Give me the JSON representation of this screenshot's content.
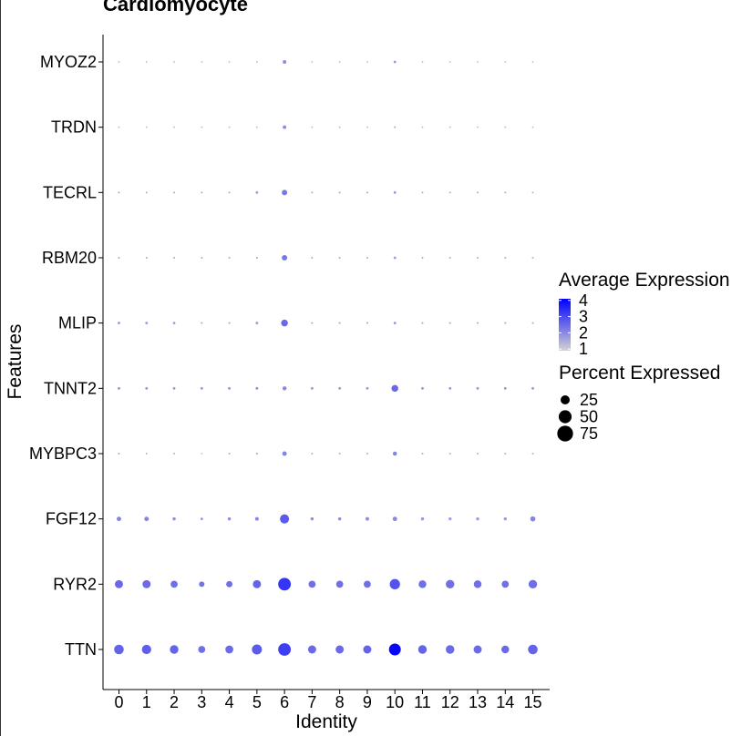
{
  "chart_data": {
    "type": "scatter",
    "subtype": "dot-plot",
    "title": "Cardiomyocyte",
    "xlabel": "Identity",
    "ylabel": "Features",
    "x_categories": [
      "0",
      "1",
      "2",
      "3",
      "4",
      "5",
      "6",
      "7",
      "8",
      "9",
      "10",
      "11",
      "12",
      "13",
      "14",
      "15"
    ],
    "y_categories": [
      "TTN",
      "RYR2",
      "FGF12",
      "MYBPC3",
      "TNNT2",
      "MLIP",
      "RBM20",
      "TECRL",
      "TRDN",
      "MYOZ2"
    ],
    "grid": false,
    "color_low": "#d3d3d3",
    "color_high": "#0000ff",
    "color_range": [
      0.5,
      4.5
    ],
    "size_range": [
      0,
      100
    ],
    "legend_position": "right",
    "legend": {
      "color_title": "Average Expression",
      "color_ticks": [
        {
          "value": 4,
          "label": "4"
        },
        {
          "value": 3,
          "label": "3"
        },
        {
          "value": 2,
          "label": "2"
        },
        {
          "value": 1,
          "label": "1"
        }
      ],
      "size_title": "Percent Expressed",
      "size_entries": [
        {
          "value": 25,
          "label": "25"
        },
        {
          "value": 50,
          "label": "50"
        },
        {
          "value": 75,
          "label": "75"
        }
      ]
    },
    "points": [
      {
        "gene": "TTN",
        "cluster": "0",
        "pct": 28,
        "avg": 2.6
      },
      {
        "gene": "TTN",
        "cluster": "1",
        "pct": 26,
        "avg": 2.7
      },
      {
        "gene": "TTN",
        "cluster": "2",
        "pct": 22,
        "avg": 2.6
      },
      {
        "gene": "TTN",
        "cluster": "3",
        "pct": 15,
        "avg": 2.4
      },
      {
        "gene": "TTN",
        "cluster": "4",
        "pct": 19,
        "avg": 2.5
      },
      {
        "gene": "TTN",
        "cluster": "5",
        "pct": 30,
        "avg": 2.8
      },
      {
        "gene": "TTN",
        "cluster": "6",
        "pct": 48,
        "avg": 3.3
      },
      {
        "gene": "TTN",
        "cluster": "7",
        "pct": 20,
        "avg": 2.5
      },
      {
        "gene": "TTN",
        "cluster": "8",
        "pct": 20,
        "avg": 2.5
      },
      {
        "gene": "TTN",
        "cluster": "9",
        "pct": 20,
        "avg": 2.6
      },
      {
        "gene": "TTN",
        "cluster": "10",
        "pct": 42,
        "avg": 4.4
      },
      {
        "gene": "TTN",
        "cluster": "11",
        "pct": 22,
        "avg": 2.6
      },
      {
        "gene": "TTN",
        "cluster": "12",
        "pct": 22,
        "avg": 2.5
      },
      {
        "gene": "TTN",
        "cluster": "13",
        "pct": 20,
        "avg": 2.5
      },
      {
        "gene": "TTN",
        "cluster": "14",
        "pct": 18,
        "avg": 2.5
      },
      {
        "gene": "TTN",
        "cluster": "15",
        "pct": 28,
        "avg": 2.6
      },
      {
        "gene": "RYR2",
        "cluster": "0",
        "pct": 20,
        "avg": 2.5
      },
      {
        "gene": "RYR2",
        "cluster": "1",
        "pct": 20,
        "avg": 2.5
      },
      {
        "gene": "RYR2",
        "cluster": "2",
        "pct": 15,
        "avg": 2.4
      },
      {
        "gene": "RYR2",
        "cluster": "3",
        "pct": 9,
        "avg": 2.3
      },
      {
        "gene": "RYR2",
        "cluster": "4",
        "pct": 12,
        "avg": 2.4
      },
      {
        "gene": "RYR2",
        "cluster": "5",
        "pct": 20,
        "avg": 2.6
      },
      {
        "gene": "RYR2",
        "cluster": "6",
        "pct": 48,
        "avg": 3.5
      },
      {
        "gene": "RYR2",
        "cluster": "7",
        "pct": 15,
        "avg": 2.4
      },
      {
        "gene": "RYR2",
        "cluster": "8",
        "pct": 15,
        "avg": 2.4
      },
      {
        "gene": "RYR2",
        "cluster": "9",
        "pct": 15,
        "avg": 2.4
      },
      {
        "gene": "RYR2",
        "cluster": "10",
        "pct": 32,
        "avg": 2.9
      },
      {
        "gene": "RYR2",
        "cluster": "11",
        "pct": 18,
        "avg": 2.4
      },
      {
        "gene": "RYR2",
        "cluster": "12",
        "pct": 22,
        "avg": 2.4
      },
      {
        "gene": "RYR2",
        "cluster": "13",
        "pct": 18,
        "avg": 2.4
      },
      {
        "gene": "RYR2",
        "cluster": "14",
        "pct": 15,
        "avg": 2.4
      },
      {
        "gene": "RYR2",
        "cluster": "15",
        "pct": 22,
        "avg": 2.4
      },
      {
        "gene": "FGF12",
        "cluster": "0",
        "pct": 6,
        "avg": 2.0
      },
      {
        "gene": "FGF12",
        "cluster": "1",
        "pct": 6,
        "avg": 2.0
      },
      {
        "gene": "FGF12",
        "cluster": "2",
        "pct": 3,
        "avg": 1.8
      },
      {
        "gene": "FGF12",
        "cluster": "3",
        "pct": 2,
        "avg": 1.7
      },
      {
        "gene": "FGF12",
        "cluster": "4",
        "pct": 3,
        "avg": 1.8
      },
      {
        "gene": "FGF12",
        "cluster": "5",
        "pct": 4,
        "avg": 1.9
      },
      {
        "gene": "FGF12",
        "cluster": "6",
        "pct": 25,
        "avg": 2.8
      },
      {
        "gene": "FGF12",
        "cluster": "7",
        "pct": 3,
        "avg": 1.8
      },
      {
        "gene": "FGF12",
        "cluster": "8",
        "pct": 3,
        "avg": 1.8
      },
      {
        "gene": "FGF12",
        "cluster": "9",
        "pct": 4,
        "avg": 1.8
      },
      {
        "gene": "FGF12",
        "cluster": "10",
        "pct": 6,
        "avg": 1.9
      },
      {
        "gene": "FGF12",
        "cluster": "11",
        "pct": 3,
        "avg": 1.6
      },
      {
        "gene": "FGF12",
        "cluster": "12",
        "pct": 3,
        "avg": 1.4
      },
      {
        "gene": "FGF12",
        "cluster": "13",
        "pct": 3,
        "avg": 1.5
      },
      {
        "gene": "FGF12",
        "cluster": "14",
        "pct": 3,
        "avg": 1.5
      },
      {
        "gene": "FGF12",
        "cluster": "15",
        "pct": 8,
        "avg": 2.0
      },
      {
        "gene": "MYBPC3",
        "cluster": "0",
        "pct": 1,
        "avg": 1.4
      },
      {
        "gene": "MYBPC3",
        "cluster": "1",
        "pct": 1,
        "avg": 1.2
      },
      {
        "gene": "MYBPC3",
        "cluster": "2",
        "pct": 1,
        "avg": 1.2
      },
      {
        "gene": "MYBPC3",
        "cluster": "3",
        "pct": 0.5,
        "avg": 1.0
      },
      {
        "gene": "MYBPC3",
        "cluster": "4",
        "pct": 1,
        "avg": 1.2
      },
      {
        "gene": "MYBPC3",
        "cluster": "5",
        "pct": 1,
        "avg": 1.5
      },
      {
        "gene": "MYBPC3",
        "cluster": "6",
        "pct": 6,
        "avg": 2.0
      },
      {
        "gene": "MYBPC3",
        "cluster": "7",
        "pct": 1,
        "avg": 1.2
      },
      {
        "gene": "MYBPC3",
        "cluster": "8",
        "pct": 1,
        "avg": 1.2
      },
      {
        "gene": "MYBPC3",
        "cluster": "9",
        "pct": 1,
        "avg": 1.2
      },
      {
        "gene": "MYBPC3",
        "cluster": "10",
        "pct": 5,
        "avg": 2.0
      },
      {
        "gene": "MYBPC3",
        "cluster": "11",
        "pct": 1,
        "avg": 1.2
      },
      {
        "gene": "MYBPC3",
        "cluster": "12",
        "pct": 1,
        "avg": 1.2
      },
      {
        "gene": "MYBPC3",
        "cluster": "13",
        "pct": 1,
        "avg": 1.2
      },
      {
        "gene": "MYBPC3",
        "cluster": "14",
        "pct": 1,
        "avg": 1.2
      },
      {
        "gene": "MYBPC3",
        "cluster": "15",
        "pct": 1,
        "avg": 1.1
      },
      {
        "gene": "TNNT2",
        "cluster": "0",
        "pct": 2,
        "avg": 1.7
      },
      {
        "gene": "TNNT2",
        "cluster": "1",
        "pct": 2,
        "avg": 1.7
      },
      {
        "gene": "TNNT2",
        "cluster": "2",
        "pct": 2,
        "avg": 1.6
      },
      {
        "gene": "TNNT2",
        "cluster": "3",
        "pct": 2,
        "avg": 1.6
      },
      {
        "gene": "TNNT2",
        "cluster": "4",
        "pct": 2,
        "avg": 1.7
      },
      {
        "gene": "TNNT2",
        "cluster": "5",
        "pct": 2,
        "avg": 1.8
      },
      {
        "gene": "TNNT2",
        "cluster": "6",
        "pct": 5,
        "avg": 1.9
      },
      {
        "gene": "TNNT2",
        "cluster": "7",
        "pct": 2,
        "avg": 1.6
      },
      {
        "gene": "TNNT2",
        "cluster": "8",
        "pct": 2,
        "avg": 1.6
      },
      {
        "gene": "TNNT2",
        "cluster": "9",
        "pct": 2,
        "avg": 1.6
      },
      {
        "gene": "TNNT2",
        "cluster": "10",
        "pct": 14,
        "avg": 2.5
      },
      {
        "gene": "TNNT2",
        "cluster": "11",
        "pct": 2,
        "avg": 1.6
      },
      {
        "gene": "TNNT2",
        "cluster": "12",
        "pct": 2,
        "avg": 1.6
      },
      {
        "gene": "TNNT2",
        "cluster": "13",
        "pct": 2,
        "avg": 1.6
      },
      {
        "gene": "TNNT2",
        "cluster": "14",
        "pct": 2,
        "avg": 1.6
      },
      {
        "gene": "TNNT2",
        "cluster": "15",
        "pct": 2,
        "avg": 1.6
      },
      {
        "gene": "MLIP",
        "cluster": "0",
        "pct": 2,
        "avg": 1.6
      },
      {
        "gene": "MLIP",
        "cluster": "1",
        "pct": 2,
        "avg": 1.6
      },
      {
        "gene": "MLIP",
        "cluster": "2",
        "pct": 2,
        "avg": 1.5
      },
      {
        "gene": "MLIP",
        "cluster": "3",
        "pct": 1,
        "avg": 1.3
      },
      {
        "gene": "MLIP",
        "cluster": "4",
        "pct": 1,
        "avg": 1.4
      },
      {
        "gene": "MLIP",
        "cluster": "5",
        "pct": 2,
        "avg": 1.6
      },
      {
        "gene": "MLIP",
        "cluster": "6",
        "pct": 14,
        "avg": 2.5
      },
      {
        "gene": "MLIP",
        "cluster": "7",
        "pct": 1,
        "avg": 1.4
      },
      {
        "gene": "MLIP",
        "cluster": "8",
        "pct": 1,
        "avg": 1.4
      },
      {
        "gene": "MLIP",
        "cluster": "9",
        "pct": 1,
        "avg": 1.4
      },
      {
        "gene": "MLIP",
        "cluster": "10",
        "pct": 2,
        "avg": 1.7
      },
      {
        "gene": "MLIP",
        "cluster": "11",
        "pct": 1,
        "avg": 1.4
      },
      {
        "gene": "MLIP",
        "cluster": "12",
        "pct": 1,
        "avg": 1.4
      },
      {
        "gene": "MLIP",
        "cluster": "13",
        "pct": 1,
        "avg": 1.4
      },
      {
        "gene": "MLIP",
        "cluster": "14",
        "pct": 1,
        "avg": 1.4
      },
      {
        "gene": "MLIP",
        "cluster": "15",
        "pct": 1,
        "avg": 1.4
      },
      {
        "gene": "RBM20",
        "cluster": "0",
        "pct": 1,
        "avg": 1.4
      },
      {
        "gene": "RBM20",
        "cluster": "1",
        "pct": 1,
        "avg": 1.4
      },
      {
        "gene": "RBM20",
        "cluster": "2",
        "pct": 1,
        "avg": 1.4
      },
      {
        "gene": "RBM20",
        "cluster": "3",
        "pct": 1,
        "avg": 1.3
      },
      {
        "gene": "RBM20",
        "cluster": "4",
        "pct": 1,
        "avg": 1.3
      },
      {
        "gene": "RBM20",
        "cluster": "5",
        "pct": 1,
        "avg": 1.5
      },
      {
        "gene": "RBM20",
        "cluster": "6",
        "pct": 9,
        "avg": 2.2
      },
      {
        "gene": "RBM20",
        "cluster": "7",
        "pct": 1,
        "avg": 1.3
      },
      {
        "gene": "RBM20",
        "cluster": "8",
        "pct": 1,
        "avg": 1.3
      },
      {
        "gene": "RBM20",
        "cluster": "9",
        "pct": 1,
        "avg": 1.3
      },
      {
        "gene": "RBM20",
        "cluster": "10",
        "pct": 2,
        "avg": 1.6
      },
      {
        "gene": "RBM20",
        "cluster": "11",
        "pct": 1,
        "avg": 1.3
      },
      {
        "gene": "RBM20",
        "cluster": "12",
        "pct": 1,
        "avg": 1.3
      },
      {
        "gene": "RBM20",
        "cluster": "13",
        "pct": 1,
        "avg": 1.3
      },
      {
        "gene": "RBM20",
        "cluster": "14",
        "pct": 1,
        "avg": 1.3
      },
      {
        "gene": "RBM20",
        "cluster": "15",
        "pct": 1,
        "avg": 1.2
      },
      {
        "gene": "TECRL",
        "cluster": "0",
        "pct": 1,
        "avg": 1.4
      },
      {
        "gene": "TECRL",
        "cluster": "1",
        "pct": 1,
        "avg": 1.3
      },
      {
        "gene": "TECRL",
        "cluster": "2",
        "pct": 1,
        "avg": 1.3
      },
      {
        "gene": "TECRL",
        "cluster": "3",
        "pct": 1,
        "avg": 1.2
      },
      {
        "gene": "TECRL",
        "cluster": "4",
        "pct": 1,
        "avg": 1.3
      },
      {
        "gene": "TECRL",
        "cluster": "5",
        "pct": 2,
        "avg": 1.5
      },
      {
        "gene": "TECRL",
        "cluster": "6",
        "pct": 9,
        "avg": 2.2
      },
      {
        "gene": "TECRL",
        "cluster": "7",
        "pct": 1,
        "avg": 1.3
      },
      {
        "gene": "TECRL",
        "cluster": "8",
        "pct": 1,
        "avg": 1.3
      },
      {
        "gene": "TECRL",
        "cluster": "9",
        "pct": 1,
        "avg": 1.3
      },
      {
        "gene": "TECRL",
        "cluster": "10",
        "pct": 2,
        "avg": 1.6
      },
      {
        "gene": "TECRL",
        "cluster": "11",
        "pct": 1,
        "avg": 1.2
      },
      {
        "gene": "TECRL",
        "cluster": "12",
        "pct": 1,
        "avg": 1.2
      },
      {
        "gene": "TECRL",
        "cluster": "13",
        "pct": 1,
        "avg": 1.2
      },
      {
        "gene": "TECRL",
        "cluster": "14",
        "pct": 1,
        "avg": 1.2
      },
      {
        "gene": "TECRL",
        "cluster": "15",
        "pct": 1,
        "avg": 1.1
      },
      {
        "gene": "TRDN",
        "cluster": "0",
        "pct": 0.5,
        "avg": 1.0
      },
      {
        "gene": "TRDN",
        "cluster": "1",
        "pct": 0.5,
        "avg": 1.0
      },
      {
        "gene": "TRDN",
        "cluster": "2",
        "pct": 0.5,
        "avg": 1.0
      },
      {
        "gene": "TRDN",
        "cluster": "3",
        "pct": 0.5,
        "avg": 1.0
      },
      {
        "gene": "TRDN",
        "cluster": "4",
        "pct": 0.5,
        "avg": 1.0
      },
      {
        "gene": "TRDN",
        "cluster": "5",
        "pct": 0.5,
        "avg": 1.0
      },
      {
        "gene": "TRDN",
        "cluster": "6",
        "pct": 4,
        "avg": 1.8
      },
      {
        "gene": "TRDN",
        "cluster": "7",
        "pct": 0.5,
        "avg": 1.0
      },
      {
        "gene": "TRDN",
        "cluster": "8",
        "pct": 0.5,
        "avg": 1.0
      },
      {
        "gene": "TRDN",
        "cluster": "9",
        "pct": 0.5,
        "avg": 1.0
      },
      {
        "gene": "TRDN",
        "cluster": "10",
        "pct": 1,
        "avg": 1.3
      },
      {
        "gene": "TRDN",
        "cluster": "11",
        "pct": 0.5,
        "avg": 1.0
      },
      {
        "gene": "TRDN",
        "cluster": "12",
        "pct": 0.5,
        "avg": 1.0
      },
      {
        "gene": "TRDN",
        "cluster": "13",
        "pct": 0.5,
        "avg": 1.0
      },
      {
        "gene": "TRDN",
        "cluster": "14",
        "pct": 0.5,
        "avg": 1.0
      },
      {
        "gene": "TRDN",
        "cluster": "15",
        "pct": 0.5,
        "avg": 1.0
      },
      {
        "gene": "MYOZ2",
        "cluster": "0",
        "pct": 0.5,
        "avg": 1.1
      },
      {
        "gene": "MYOZ2",
        "cluster": "1",
        "pct": 0.5,
        "avg": 1.1
      },
      {
        "gene": "MYOZ2",
        "cluster": "2",
        "pct": 0.5,
        "avg": 1.1
      },
      {
        "gene": "MYOZ2",
        "cluster": "3",
        "pct": 0.5,
        "avg": 1.0
      },
      {
        "gene": "MYOZ2",
        "cluster": "4",
        "pct": 0.5,
        "avg": 1.1
      },
      {
        "gene": "MYOZ2",
        "cluster": "5",
        "pct": 0.5,
        "avg": 1.2
      },
      {
        "gene": "MYOZ2",
        "cluster": "6",
        "pct": 4,
        "avg": 1.8
      },
      {
        "gene": "MYOZ2",
        "cluster": "7",
        "pct": 0.5,
        "avg": 1.0
      },
      {
        "gene": "MYOZ2",
        "cluster": "8",
        "pct": 0.5,
        "avg": 1.0
      },
      {
        "gene": "MYOZ2",
        "cluster": "9",
        "pct": 0.5,
        "avg": 1.0
      },
      {
        "gene": "MYOZ2",
        "cluster": "10",
        "pct": 2,
        "avg": 1.6
      },
      {
        "gene": "MYOZ2",
        "cluster": "11",
        "pct": 0.5,
        "avg": 1.0
      },
      {
        "gene": "MYOZ2",
        "cluster": "12",
        "pct": 0.5,
        "avg": 1.0
      },
      {
        "gene": "MYOZ2",
        "cluster": "13",
        "pct": 0.5,
        "avg": 1.0
      },
      {
        "gene": "MYOZ2",
        "cluster": "14",
        "pct": 0.5,
        "avg": 1.0
      },
      {
        "gene": "MYOZ2",
        "cluster": "15",
        "pct": 0.5,
        "avg": 1.0
      }
    ]
  }
}
